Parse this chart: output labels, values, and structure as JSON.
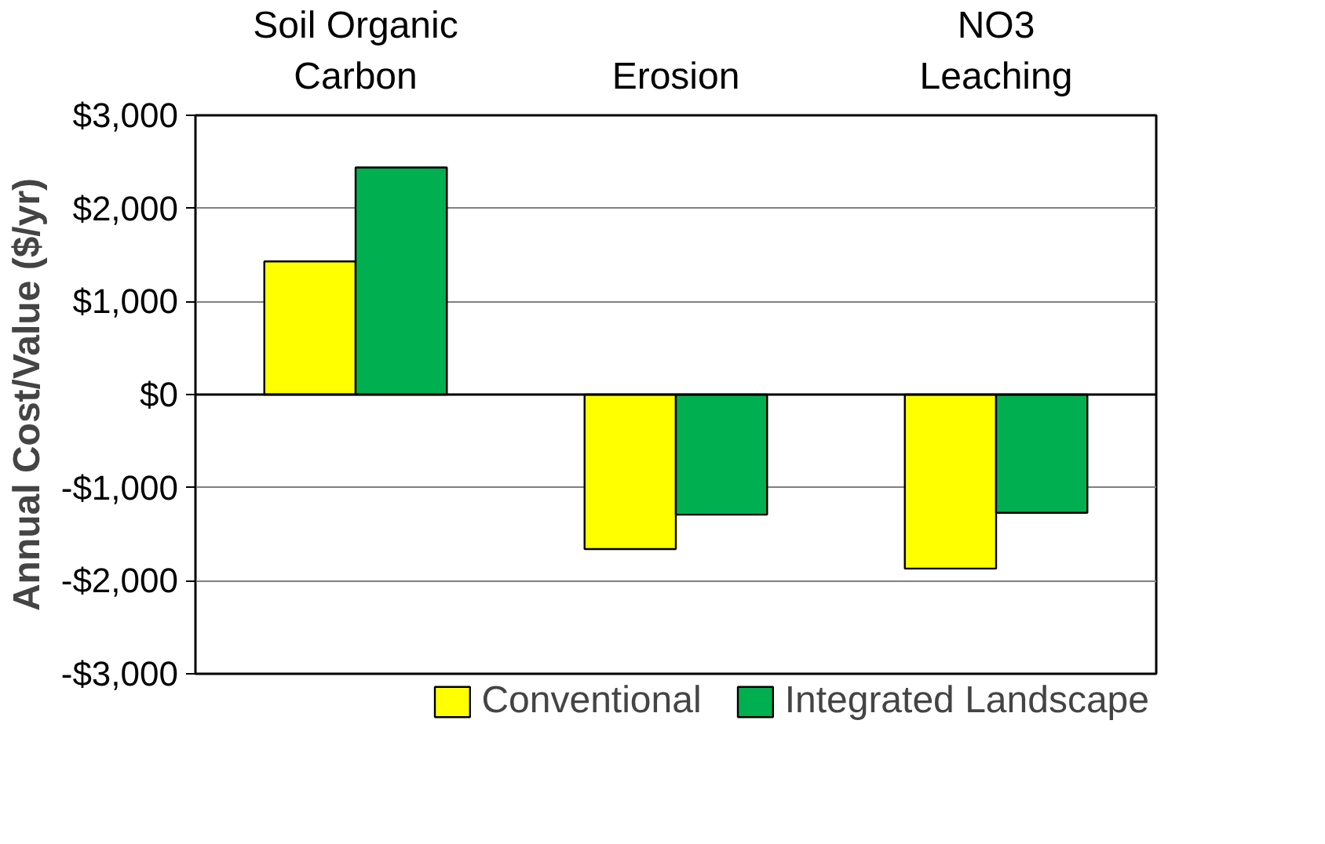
{
  "chart_data": {
    "type": "bar",
    "ylabel": "Annual Cost/Value ($/yr)",
    "categories": [
      "Soil Organic\nCarbon",
      "Erosion",
      "NO3\nLeaching"
    ],
    "series": [
      {
        "name": "Conventional",
        "color": "#ffff00",
        "values": [
          1430,
          -1660,
          -1870
        ]
      },
      {
        "name": "Integrated Landscape",
        "color": "#00b050",
        "values": [
          2440,
          -1290,
          -1270
        ]
      }
    ],
    "ylim": [
      -3000,
      3000
    ],
    "yticks": [
      {
        "value": -3000,
        "label": "-$3,000"
      },
      {
        "value": -2000,
        "label": "-$2,000"
      },
      {
        "value": -1000,
        "label": "-$1,000"
      },
      {
        "value": 0,
        "label": "$0"
      },
      {
        "value": 1000,
        "label": "$1,000"
      },
      {
        "value": 2000,
        "label": "$2,000"
      },
      {
        "value": 3000,
        "label": "$3,000"
      }
    ],
    "grid": "y",
    "legend": "bottom"
  }
}
